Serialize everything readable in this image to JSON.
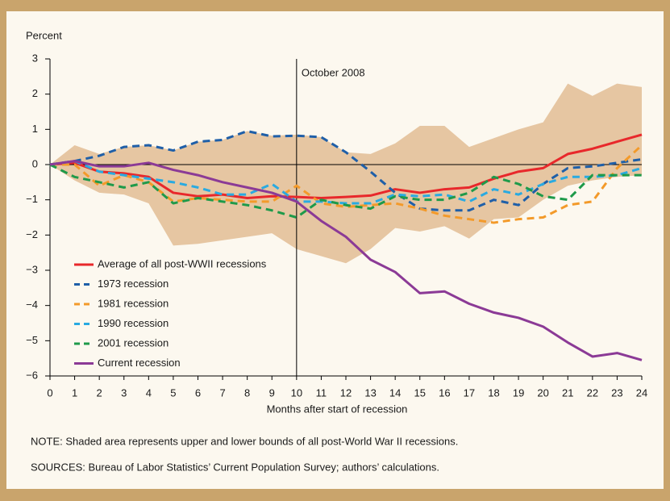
{
  "chart_data": {
    "type": "line",
    "y_label": "Percent",
    "x_label": "Months after start of recession",
    "note": "NOTE: Shaded area represents upper and lower bounds of all post-World War II recessions.",
    "sources": "SOURCES: Bureau of Labor Statistics’ Current Population Survey; authors’ calculations.",
    "annotation": {
      "x": 10,
      "label": "October 2008"
    },
    "x": [
      0,
      1,
      2,
      3,
      4,
      5,
      6,
      7,
      8,
      9,
      10,
      11,
      12,
      13,
      14,
      15,
      16,
      17,
      18,
      19,
      20,
      21,
      22,
      23,
      24
    ],
    "xlim": [
      0,
      24
    ],
    "xticks": [
      0,
      1,
      2,
      3,
      4,
      5,
      6,
      7,
      8,
      9,
      10,
      11,
      12,
      13,
      14,
      15,
      16,
      17,
      18,
      19,
      20,
      21,
      22,
      23,
      24
    ],
    "ylim": [
      -6,
      3
    ],
    "yticks": [
      {
        "value": -6,
        "label": "−6"
      },
      {
        "value": -5,
        "label": "−5"
      },
      {
        "value": -4,
        "label": "−4"
      },
      {
        "value": -3,
        "label": "−3"
      },
      {
        "value": -2,
        "label": "−2"
      },
      {
        "value": -1,
        "label": "−1"
      },
      0,
      1,
      2,
      3
    ],
    "legend": "lower left",
    "band": {
      "color": "#e6c6a2",
      "upper": [
        0,
        0.55,
        0.3,
        0.5,
        0.55,
        0.4,
        0.65,
        0.7,
        0.95,
        0.82,
        0.85,
        0.78,
        0.35,
        0.3,
        0.6,
        1.1,
        1.1,
        0.5,
        0.75,
        1.0,
        1.2,
        2.3,
        1.95,
        2.3,
        2.2
      ],
      "lower": [
        0,
        -0.45,
        -0.8,
        -0.85,
        -1.1,
        -2.3,
        -2.25,
        -2.15,
        -2.05,
        -1.95,
        -2.4,
        -2.6,
        -2.8,
        -2.4,
        -1.8,
        -1.9,
        -1.75,
        -2.1,
        -1.55,
        -1.5,
        -1.0,
        -0.6,
        -0.45,
        -0.35,
        -0.3
      ]
    },
    "series": [
      {
        "name": "Average of all post-WWII recessions",
        "color": "#e8282b",
        "dashed": false,
        "values": [
          0,
          0.05,
          -0.2,
          -0.25,
          -0.35,
          -0.8,
          -0.9,
          -0.85,
          -0.95,
          -0.9,
          -0.92,
          -0.95,
          -0.92,
          -0.88,
          -0.7,
          -0.8,
          -0.7,
          -0.65,
          -0.4,
          -0.2,
          -0.1,
          0.3,
          0.45,
          0.65,
          0.85
        ]
      },
      {
        "name": "1973 recession",
        "color": "#1f5fa8",
        "dashed": true,
        "values": [
          0,
          0.1,
          0.25,
          0.5,
          0.55,
          0.4,
          0.65,
          0.7,
          0.95,
          0.8,
          0.82,
          0.78,
          0.35,
          -0.2,
          -0.8,
          -1.25,
          -1.3,
          -1.3,
          -1.0,
          -1.15,
          -0.55,
          -0.1,
          -0.05,
          0.05,
          0.15
        ]
      },
      {
        "name": "1981 recession",
        "color": "#f39a2a",
        "dashed": true,
        "values": [
          0,
          0,
          -0.6,
          -0.3,
          -0.5,
          -1.05,
          -0.95,
          -1.0,
          -1.05,
          -1.05,
          -0.6,
          -1.1,
          -1.2,
          -1.15,
          -1.1,
          -1.25,
          -1.45,
          -1.55,
          -1.65,
          -1.55,
          -1.5,
          -1.15,
          -1.05,
          -0.1,
          0.55
        ]
      },
      {
        "name": "1990 recession",
        "color": "#29aae1",
        "dashed": true,
        "values": [
          0,
          0.1,
          -0.2,
          -0.3,
          -0.4,
          -0.5,
          -0.65,
          -0.85,
          -0.85,
          -0.55,
          -1.05,
          -1.05,
          -1.1,
          -1.1,
          -0.85,
          -0.9,
          -0.85,
          -1.05,
          -0.7,
          -0.85,
          -0.55,
          -0.35,
          -0.35,
          -0.3,
          -0.1
        ]
      },
      {
        "name": "2001 recession",
        "color": "#1e9a4a",
        "dashed": true,
        "values": [
          0,
          -0.35,
          -0.5,
          -0.65,
          -0.5,
          -1.1,
          -0.95,
          -1.05,
          -1.15,
          -1.3,
          -1.5,
          -1.0,
          -1.15,
          -1.25,
          -0.9,
          -1.0,
          -1.0,
          -0.8,
          -0.35,
          -0.55,
          -0.9,
          -1.0,
          -0.3,
          -0.3,
          -0.3
        ]
      },
      {
        "name": "Current recession",
        "color": "#8b3a96",
        "dashed": false,
        "values": [
          0,
          0.1,
          -0.05,
          -0.05,
          0.05,
          -0.15,
          -0.3,
          -0.5,
          -0.65,
          -0.8,
          -1.05,
          -1.6,
          -2.05,
          -2.7,
          -3.05,
          -3.65,
          -3.6,
          -3.95,
          -4.2,
          -4.35,
          -4.6,
          -5.05,
          -5.45,
          -5.35,
          -5.55
        ]
      }
    ]
  }
}
